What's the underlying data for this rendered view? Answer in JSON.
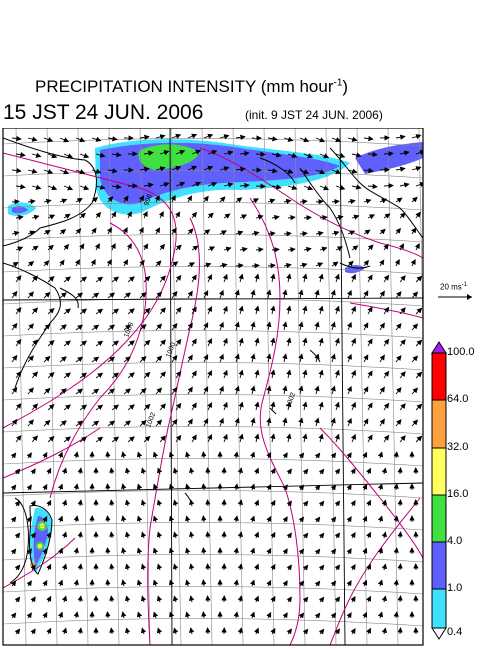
{
  "header": {
    "title_main": "PRECIPITATION INTENSITY (mm hour",
    "title_unit_exponent": "-1",
    "title_close": ")",
    "valid_time": "15 JST 24 JUN. 2006",
    "init_time": "(init. 9 JST 24 JUN. 2006)"
  },
  "wind_scale": {
    "label": "20 ms",
    "exponent": "-1"
  },
  "isobar_labels": [
    "998",
    "1000",
    "1000",
    "1002",
    "1002"
  ],
  "legend": {
    "ticks": [
      "100.0",
      "64.0",
      "32.0",
      "16.0",
      "4.0",
      "1.0",
      "0.4"
    ],
    "colors": {
      "over": "#a020f0",
      "64-100": "#ff0000",
      "32-64": "#ffa040",
      "16-32": "#ffff60",
      "4-16": "#40e040",
      "1-4": "#6060ff",
      "0.4-1": "#40e0ff",
      "under": "#ffffff"
    }
  },
  "colors": {
    "isobar": "#c0007a",
    "coast": "#000000",
    "grid": "#888888"
  }
}
